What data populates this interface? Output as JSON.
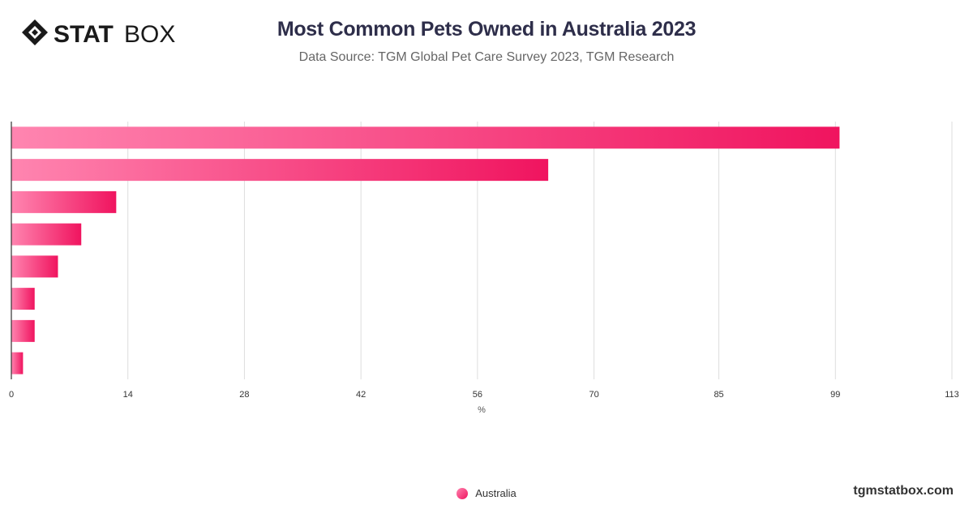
{
  "brand": {
    "logo_bold": "STAT",
    "logo_light": "BOX"
  },
  "header": {
    "title": "Most Common Pets Owned in Australia 2023",
    "subtitle": "Data Source: TGM Global Pet Care Survey 2023, TGM Research"
  },
  "watermark": "tgmstatbox.com",
  "colors": {
    "bar_start": "#ff85b0",
    "bar_end": "#f0145f",
    "grid": "#dddddd",
    "axis": "#333333"
  },
  "chart_data": {
    "type": "bar",
    "orientation": "horizontal",
    "title": "Most Common Pets Owned in Australia 2023",
    "xlabel": "%",
    "xlim": [
      0,
      113
    ],
    "ticks": [
      "0",
      "14",
      "28",
      "42",
      "56",
      "70",
      "85",
      "99",
      "113"
    ],
    "grid": true,
    "legend_position": "bottom",
    "series": [
      {
        "name": "Australia",
        "values": [
          99.5,
          64.5,
          12.6,
          8.4,
          5.6,
          2.8,
          2.8,
          1.4
        ]
      }
    ]
  }
}
